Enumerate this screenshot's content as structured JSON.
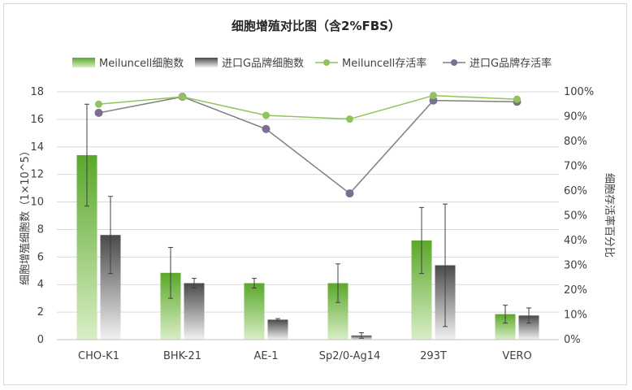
{
  "chart_data": {
    "type": "bar",
    "title": "细胞增殖对比图（含2%FBS）",
    "categories": [
      "CHO-K1",
      "BHK-21",
      "AE-1",
      "Sp2/0-Ag14",
      "293T",
      "VERO"
    ],
    "ylabel": "细胞增殖细胞数（1×10^5）",
    "y2label": "细胞存活率百分比",
    "ylim": [
      0,
      18
    ],
    "yticks": [
      0,
      2,
      4,
      6,
      8,
      10,
      12,
      14,
      16,
      18
    ],
    "y2lim": [
      0,
      100
    ],
    "y2ticks": [
      "0%",
      "10%",
      "20%",
      "30%",
      "40%",
      "50%",
      "60%",
      "70%",
      "80%",
      "90%",
      "100%"
    ],
    "legend_position": "top",
    "grid": true,
    "series": [
      {
        "name": "Meiluncell细胞数",
        "kind": "bar",
        "axis": "left",
        "color": "#6fbf3a",
        "values": [
          13.4,
          4.85,
          4.1,
          4.1,
          7.2,
          1.85
        ],
        "error": [
          3.7,
          1.85,
          0.35,
          1.4,
          2.4,
          0.65
        ]
      },
      {
        "name": "进口G品牌细胞数",
        "kind": "bar",
        "axis": "left",
        "color": "#7f7f7f",
        "values": [
          7.6,
          4.1,
          1.45,
          0.3,
          5.4,
          1.75
        ],
        "error": [
          2.8,
          0.35,
          0.08,
          0.2,
          4.45,
          0.55
        ]
      },
      {
        "name": "Meiluncell存活率",
        "kind": "line",
        "axis": "right",
        "color": "#92c35a",
        "values": [
          95,
          98,
          90.5,
          89,
          98.5,
          97
        ]
      },
      {
        "name": "进口G品牌存活率",
        "kind": "line",
        "axis": "right",
        "color": "#7f7f7f",
        "marker_color": "#7a6f8f",
        "values": [
          91.5,
          98,
          85,
          59,
          96.5,
          96
        ]
      }
    ]
  }
}
